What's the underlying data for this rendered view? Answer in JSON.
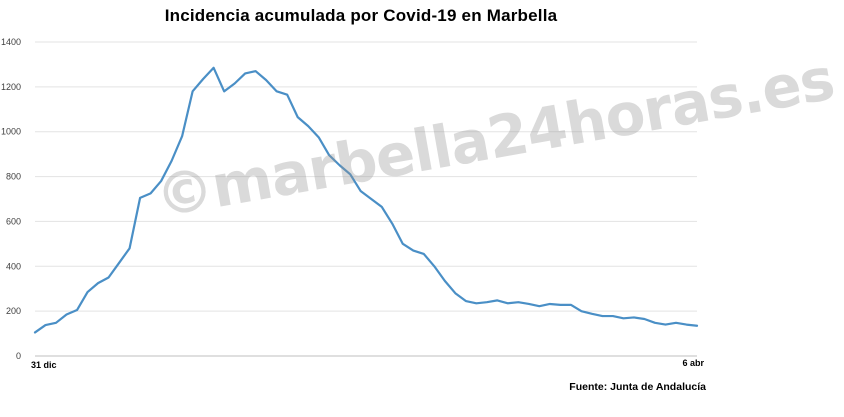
{
  "watermark_text": "©marbella24horas.es",
  "source_note": "Fuente: Junta de Andalucía",
  "chart_data": {
    "type": "line",
    "title": "Incidencia acumulada por Covid-19 en Marbella",
    "xlabel": "",
    "ylabel": "",
    "x_labels": {
      "start": "31 dic",
      "end": "6 abr"
    },
    "ylim": [
      0,
      1400
    ],
    "yticks": [
      0,
      200,
      400,
      600,
      800,
      1000,
      1200,
      1400
    ],
    "grid": "horizontal",
    "line_color": "#4a8fc6",
    "series": [
      {
        "values": [
          105,
          138,
          148,
          185,
          205,
          285,
          325,
          350,
          415,
          480,
          705,
          725,
          780,
          870,
          980,
          1180,
          1235,
          1285,
          1180,
          1215,
          1260,
          1270,
          1230,
          1180,
          1165,
          1065,
          1025,
          975,
          895,
          850,
          810,
          735,
          700,
          665,
          590,
          500,
          470,
          455,
          400,
          335,
          280,
          245,
          235,
          240,
          248,
          235,
          240,
          232,
          222,
          232,
          228,
          228,
          200,
          188,
          178,
          178,
          168,
          172,
          165,
          148,
          140,
          148,
          140,
          135
        ]
      }
    ]
  }
}
